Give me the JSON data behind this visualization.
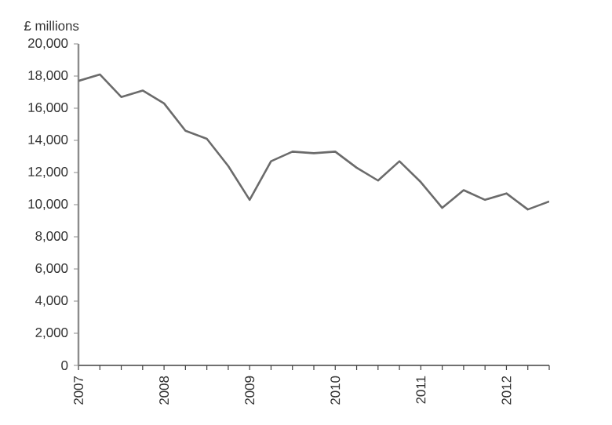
{
  "chart_data": {
    "type": "line",
    "ylabel": "£ millions",
    "x": [
      2007,
      2007.25,
      2007.5,
      2007.75,
      2008,
      2008.25,
      2008.5,
      2008.75,
      2009,
      2009.25,
      2009.5,
      2009.75,
      2010,
      2010.25,
      2010.5,
      2010.75,
      2011,
      2011.25,
      2011.5,
      2011.75,
      2012,
      2012.25,
      2012.5
    ],
    "values": [
      17700,
      18100,
      16700,
      17100,
      16300,
      14600,
      14100,
      12400,
      10300,
      12700,
      13300,
      13200,
      13300,
      12300,
      11500,
      12700,
      11400,
      9800,
      10900,
      10300,
      10700,
      9700,
      10200
    ],
    "color": "#6b6b6b",
    "xlim": [
      2007,
      2012.5
    ],
    "ylim": [
      0,
      20000
    ],
    "xticks": [
      2007,
      {
        "value": 2007.25,
        "label": null
      },
      {
        "value": 2007.5,
        "label": null
      },
      {
        "value": 2007.75,
        "label": null
      },
      2008,
      {
        "value": 2008.25,
        "label": null
      },
      {
        "value": 2008.5,
        "label": null
      },
      {
        "value": 2008.75,
        "label": null
      },
      2009,
      {
        "value": 2009.25,
        "label": null
      },
      {
        "value": 2009.5,
        "label": null
      },
      {
        "value": 2009.75,
        "label": null
      },
      2010,
      {
        "value": 2010.25,
        "label": null
      },
      {
        "value": 2010.5,
        "label": null
      },
      {
        "value": 2010.75,
        "label": null
      },
      2011,
      {
        "value": 2011.25,
        "label": null
      },
      {
        "value": 2011.5,
        "label": null
      },
      {
        "value": 2011.75,
        "label": null
      },
      2012,
      {
        "value": 2012.25,
        "label": null
      },
      {
        "value": 2012.5,
        "label": null
      }
    ],
    "yticks": [
      0,
      {
        "value": 2000,
        "label": "2,000"
      },
      {
        "value": 4000,
        "label": "4,000"
      },
      {
        "value": 6000,
        "label": "6,000"
      },
      {
        "value": 8000,
        "label": "8,000"
      },
      {
        "value": 10000,
        "label": "10,000"
      },
      {
        "value": 12000,
        "label": "12,000"
      },
      {
        "value": 14000,
        "label": "14,000"
      },
      {
        "value": 16000,
        "label": "16,000"
      },
      {
        "value": 18000,
        "label": "18,000"
      },
      {
        "value": 20000,
        "label": "20,000"
      }
    ]
  }
}
